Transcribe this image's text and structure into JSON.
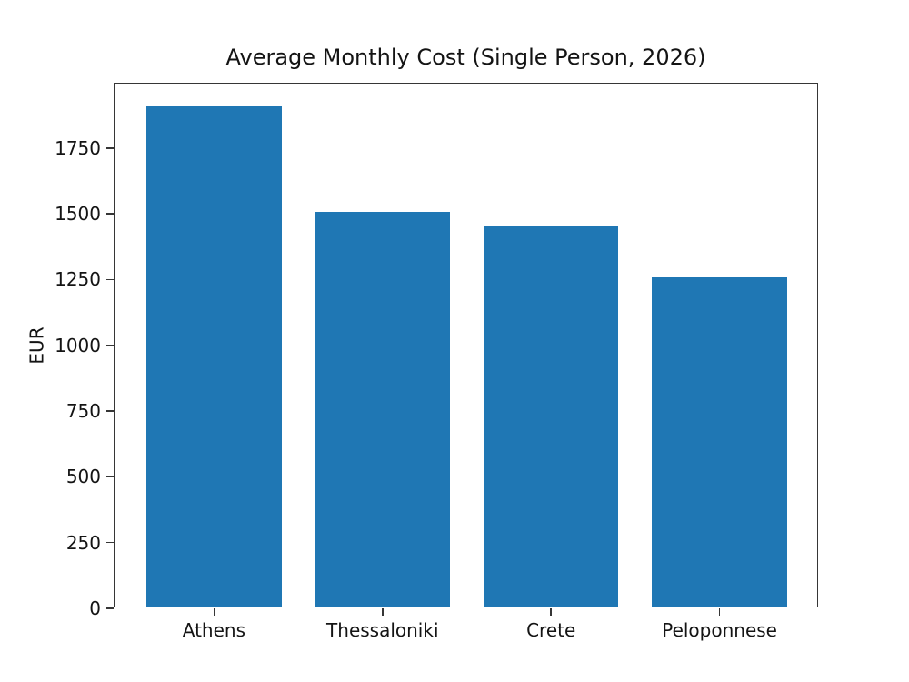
{
  "chart_data": {
    "type": "bar",
    "title": "Average Monthly Cost (Single Person, 2026)",
    "categories": [
      "Athens",
      "Thessaloniki",
      "Crete",
      "Peloponnese"
    ],
    "values": [
      1900,
      1500,
      1450,
      1250
    ],
    "xlabel": "",
    "ylabel": "EUR",
    "yticks": [
      0,
      250,
      500,
      750,
      1000,
      1250,
      1500,
      1750
    ],
    "ylim": [
      0,
      1995
    ],
    "xlim": [
      -0.59,
      3.59
    ],
    "bar_width": 0.8,
    "bar_color": "#1f77b4",
    "background_color": "#ffffff",
    "axis_color": "#363636",
    "text_color": "#141414",
    "grid": false,
    "legend_position": "none"
  }
}
